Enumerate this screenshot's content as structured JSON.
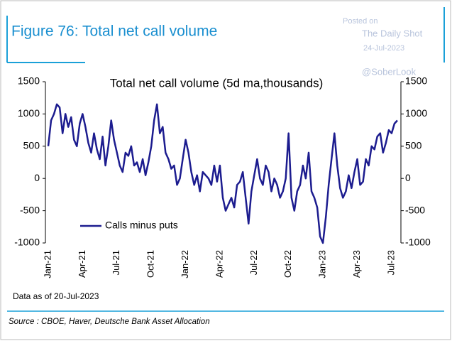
{
  "header": {
    "title": "Figure 76: Total net call volume"
  },
  "watermark": {
    "posted": "Posted on",
    "site": "The Daily Shot",
    "date": "24-Jul-2023",
    "handle": "@SoberLook"
  },
  "chart_data": {
    "type": "line",
    "title": "Total net call volume (5d ma,thousands)",
    "categories": [
      "Jan-21",
      null,
      null,
      null,
      null,
      null,
      null,
      null,
      null,
      null,
      null,
      null,
      "Apr-21",
      null,
      null,
      null,
      null,
      null,
      null,
      null,
      null,
      null,
      null,
      null,
      "Jul-21",
      null,
      null,
      null,
      null,
      null,
      null,
      null,
      null,
      null,
      null,
      null,
      "Oct-21",
      null,
      null,
      null,
      null,
      null,
      null,
      null,
      null,
      null,
      null,
      null,
      "Jan-22",
      null,
      null,
      null,
      null,
      null,
      null,
      null,
      null,
      null,
      null,
      null,
      "Apr-22",
      null,
      null,
      null,
      null,
      null,
      null,
      null,
      null,
      null,
      null,
      null,
      "Jul-22",
      null,
      null,
      null,
      null,
      null,
      null,
      null,
      null,
      null,
      null,
      null,
      "Oct-22",
      null,
      null,
      null,
      null,
      null,
      null,
      null,
      null,
      null,
      null,
      null,
      "Jan-23",
      null,
      null,
      null,
      null,
      null,
      null,
      null,
      null,
      null,
      null,
      null,
      "Apr-23",
      null,
      null,
      null,
      null,
      null,
      null,
      null,
      null,
      null,
      null,
      null,
      "Jul-23",
      null,
      null
    ],
    "series": [
      {
        "name": "Calls minus puts",
        "color": "#1c1c8f",
        "values": [
          500,
          900,
          1000,
          1150,
          1100,
          700,
          1000,
          800,
          950,
          600,
          500,
          850,
          1000,
          800,
          550,
          400,
          700,
          450,
          300,
          650,
          200,
          500,
          900,
          600,
          400,
          200,
          100,
          400,
          350,
          500,
          200,
          250,
          100,
          300,
          50,
          250,
          500,
          900,
          1150,
          700,
          800,
          400,
          300,
          150,
          200,
          -100,
          0,
          300,
          600,
          400,
          100,
          -100,
          50,
          -200,
          100,
          50,
          0,
          -100,
          200,
          -50,
          200,
          -300,
          -500,
          -400,
          -300,
          -450,
          -100,
          -50,
          100,
          -300,
          -700,
          -200,
          50,
          300,
          0,
          -100,
          200,
          100,
          -200,
          0,
          -100,
          -300,
          -200,
          0,
          700,
          -300,
          -500,
          -200,
          -100,
          200,
          0,
          400,
          -200,
          -300,
          -450,
          -900,
          -1000,
          -600,
          -100,
          300,
          700,
          200,
          -150,
          -300,
          -200,
          50,
          -150,
          100,
          300,
          -100,
          -50,
          300,
          200,
          500,
          450,
          650,
          700,
          400,
          550,
          750,
          700,
          850,
          900
        ]
      }
    ],
    "ylim": [
      -1000,
      1500
    ],
    "yticks": [
      -1000,
      -500,
      0,
      500,
      1000,
      1500
    ],
    "y2lim": [
      -1000,
      1500
    ],
    "y2ticks": [
      -1000,
      -500,
      0,
      500,
      1000,
      1500
    ],
    "legend": "lower-left"
  },
  "footer": {
    "note": "Data as of 20-Jul-2023",
    "source": "Source : CBOE, Haver, Deutsche Bank Asset Allocation"
  }
}
